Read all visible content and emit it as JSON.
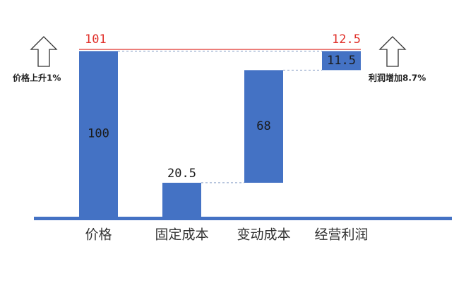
{
  "chart_data": {
    "type": "waterfall",
    "categories": [
      "价格",
      "固定成本",
      "变动成本",
      "经营利润"
    ],
    "values": [
      100,
      20.5,
      68,
      11.5
    ],
    "label_position": [
      "inside",
      "above",
      "inside",
      "inside"
    ],
    "color": "#4472c4",
    "markers": {
      "new_price": 101,
      "new_profit": 12.5,
      "color": "#e0302a"
    },
    "notes": {
      "left": "价格上升1%",
      "right": "利润增加8.7%"
    }
  }
}
